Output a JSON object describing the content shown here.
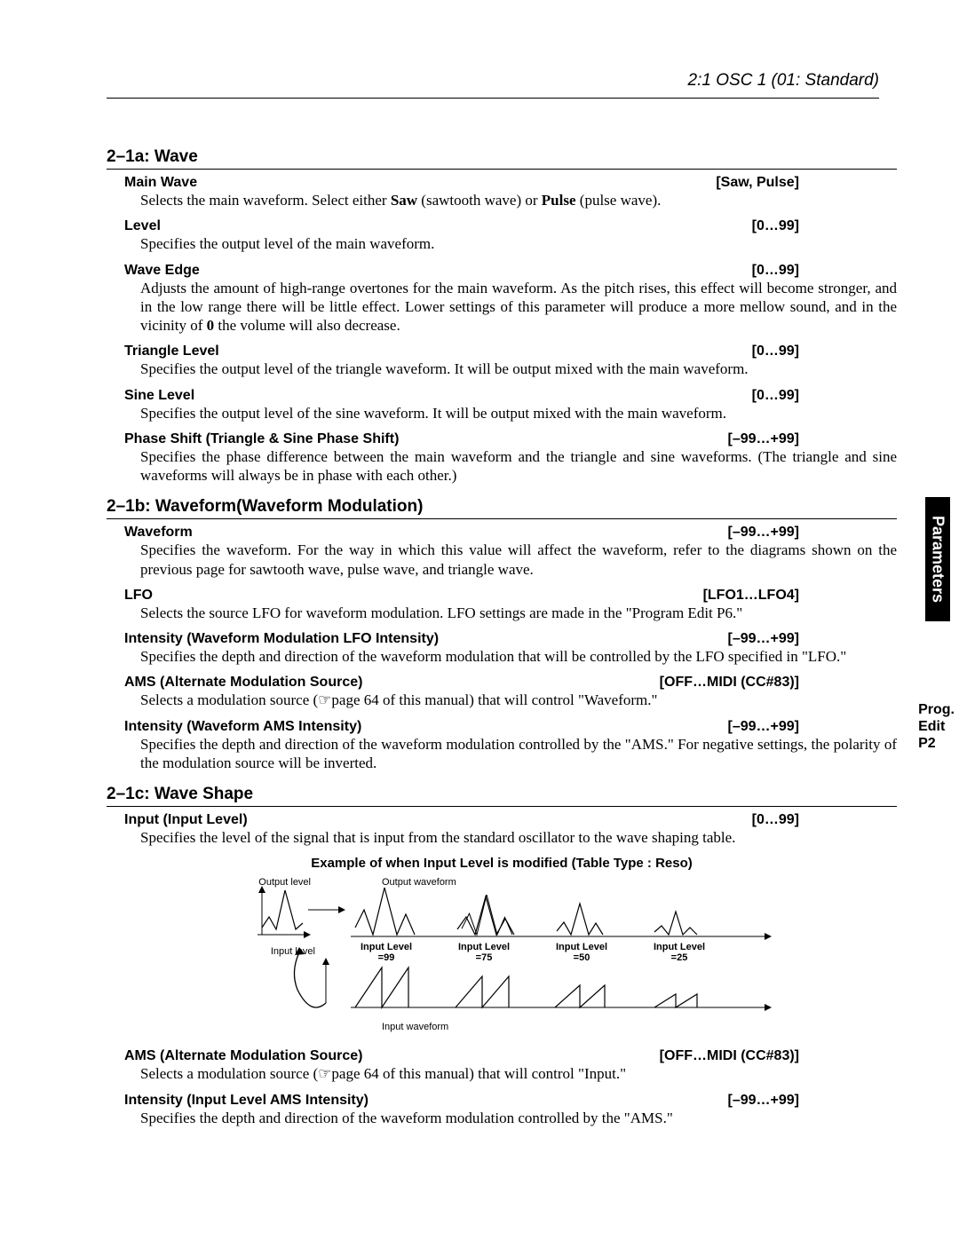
{
  "header": {
    "title": "2:1 OSC 1 (01: Standard)"
  },
  "section_a": {
    "heading": "2–1a: Wave",
    "params": [
      {
        "label": "Main Wave",
        "range": "[Saw, Pulse]",
        "desc_html": "Selects the main waveform. Select either <b>Saw</b> (sawtooth wave) or <b>Pulse</b> (pulse wave)."
      },
      {
        "label": "Level",
        "range": "[0…99]",
        "desc_html": "Specifies the output level of the main waveform."
      },
      {
        "label": "Wave Edge",
        "range": "[0…99]",
        "desc_html": "Adjusts the amount of high-range overtones for the main waveform. As the pitch rises, this effect will become stronger, and in the low range there will be little effect. Lower settings of this parameter will produce a more mellow sound, and in the vicinity of <b>0</b> the volume will also decrease."
      },
      {
        "label": "Triangle Level",
        "range": "[0…99]",
        "desc_html": "Specifies the output level of the triangle waveform. It will be output mixed with the main waveform."
      },
      {
        "label": "Sine Level",
        "range": "[0…99]",
        "desc_html": "Specifies the output level of the sine waveform. It will be output mixed with the main waveform."
      },
      {
        "label": "Phase Shift (Triangle & Sine Phase Shift)",
        "range": "[–99…+99]",
        "desc_html": "Specifies the phase difference between the main waveform and the triangle and sine waveforms. (The triangle and sine waveforms will always be in phase with each other.)"
      }
    ]
  },
  "section_b": {
    "heading": "2–1b: Waveform(Waveform Modulation)",
    "params": [
      {
        "label": "Waveform",
        "range": "[–99…+99]",
        "desc_html": "Specifies the waveform. For the way in which this value will affect the waveform, refer to the diagrams shown on the previous page for sawtooth wave, pulse wave, and triangle wave."
      },
      {
        "label": "LFO",
        "range": "[LFO1…LFO4]",
        "desc_html": "Selects the source LFO for waveform modulation. LFO settings are made in the \"Program Edit P6.\""
      },
      {
        "label": "Intensity (Waveform Modulation LFO Intensity)",
        "range": "[–99…+99]",
        "desc_html": "Specifies the depth and direction of the waveform modulation that will be controlled by the LFO specified in \"LFO.\""
      },
      {
        "label": "AMS (Alternate Modulation Source)",
        "range": "[OFF…MIDI (CC#83)]",
        "desc_html": "Selects a modulation source (☞page 64 of this manual) that will control \"Waveform.\""
      },
      {
        "label": "Intensity (Waveform AMS Intensity)",
        "range": "[–99…+99]",
        "desc_html": "Specifies the depth and direction of the waveform modulation controlled by the \"AMS.\" For negative settings, the polarity of the modulation source will be inverted."
      }
    ]
  },
  "section_c": {
    "heading": "2–1c: Wave Shape",
    "params_pre": [
      {
        "label": "Input (Input Level)",
        "range": "[0…99]",
        "desc_html": "Specifies the level of the signal that is input from the standard oscillator to the wave shaping table."
      }
    ],
    "diagram_title": "Example of when Input Level is modified   (Table Type : Reso)",
    "diagram_labels": {
      "output_level": "Output level",
      "output_waveform": "Output waveform",
      "input_level": "Input level",
      "input_waveform": "Input waveform",
      "il99": "Input Level\n=99",
      "il75": "Input Level\n=75",
      "il50": "Input Level\n=50",
      "il25": "Input Level\n=25"
    },
    "params_post": [
      {
        "label": "AMS (Alternate Modulation Source)",
        "range": "[OFF…MIDI (CC#83)]",
        "desc_html": "Selects a modulation source (☞page 64 of this manual) that will control \"Input.\""
      },
      {
        "label": "Intensity (Input Level AMS Intensity)",
        "range": "[–99…+99]",
        "desc_html": "Specifies the depth and direction of the waveform modulation controlled by the \"AMS.\""
      }
    ]
  },
  "side": {
    "tab": "Parameters",
    "label": "Prog.\nEdit\nP2"
  }
}
